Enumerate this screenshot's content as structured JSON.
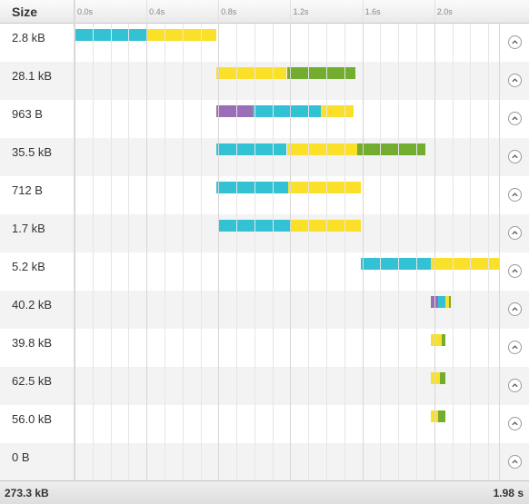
{
  "header": {
    "size_label": "Size",
    "ticks": [
      "0.0s",
      "0.4s",
      "0.8s",
      "1.2s",
      "1.6s",
      "2.0s"
    ]
  },
  "colors": {
    "dns": "#9b6fb5",
    "connect": "#33c2d4",
    "wait": "#fbe02a",
    "receive": "#73ad2f"
  },
  "timeline_max_s": 2.36,
  "requests": [
    {
      "size": "2.8 kB",
      "phases": [
        {
          "type": "connect",
          "start": 0.0,
          "end": 0.4
        },
        {
          "type": "wait",
          "start": 0.4,
          "end": 0.79
        }
      ]
    },
    {
      "size": "28.1 kB",
      "phases": [
        {
          "type": "wait",
          "start": 0.79,
          "end": 1.18
        },
        {
          "type": "receive",
          "start": 1.18,
          "end": 1.56
        }
      ]
    },
    {
      "size": "963 B",
      "phases": [
        {
          "type": "dns",
          "start": 0.79,
          "end": 0.99
        },
        {
          "type": "connect",
          "start": 0.99,
          "end": 1.37
        },
        {
          "type": "wait",
          "start": 1.37,
          "end": 1.55
        }
      ]
    },
    {
      "size": "35.5 kB",
      "phases": [
        {
          "type": "connect",
          "start": 0.79,
          "end": 1.18
        },
        {
          "type": "wait",
          "start": 1.18,
          "end": 1.57
        },
        {
          "type": "receive",
          "start": 1.57,
          "end": 1.95
        }
      ]
    },
    {
      "size": "712 B",
      "phases": [
        {
          "type": "connect",
          "start": 0.79,
          "end": 1.19
        },
        {
          "type": "wait",
          "start": 1.19,
          "end": 1.59
        }
      ]
    },
    {
      "size": "1.7 kB",
      "phases": [
        {
          "type": "connect",
          "start": 0.8,
          "end": 1.2
        },
        {
          "type": "wait",
          "start": 1.2,
          "end": 1.59
        }
      ]
    },
    {
      "size": "5.2 kB",
      "phases": [
        {
          "type": "connect",
          "start": 1.59,
          "end": 1.98
        },
        {
          "type": "wait",
          "start": 1.98,
          "end": 2.36
        }
      ]
    },
    {
      "size": "40.2 kB",
      "phases": [
        {
          "type": "dns",
          "start": 1.98,
          "end": 2.02
        },
        {
          "type": "connect",
          "start": 2.02,
          "end": 2.06
        },
        {
          "type": "wait",
          "start": 2.06,
          "end": 2.08
        },
        {
          "type": "receive",
          "start": 2.08,
          "end": 2.09
        }
      ]
    },
    {
      "size": "39.8 kB",
      "phases": [
        {
          "type": "wait",
          "start": 1.98,
          "end": 2.04
        },
        {
          "type": "receive",
          "start": 2.04,
          "end": 2.06
        }
      ]
    },
    {
      "size": "62.5 kB",
      "phases": [
        {
          "type": "wait",
          "start": 1.98,
          "end": 2.03
        },
        {
          "type": "receive",
          "start": 2.03,
          "end": 2.06
        }
      ]
    },
    {
      "size": "56.0 kB",
      "phases": [
        {
          "type": "wait",
          "start": 1.98,
          "end": 2.02
        },
        {
          "type": "receive",
          "start": 2.02,
          "end": 2.06
        }
      ]
    },
    {
      "size": "0 B",
      "phases": []
    }
  ],
  "footer": {
    "total_size": "273.3 kB",
    "total_time": "1.98 s"
  }
}
